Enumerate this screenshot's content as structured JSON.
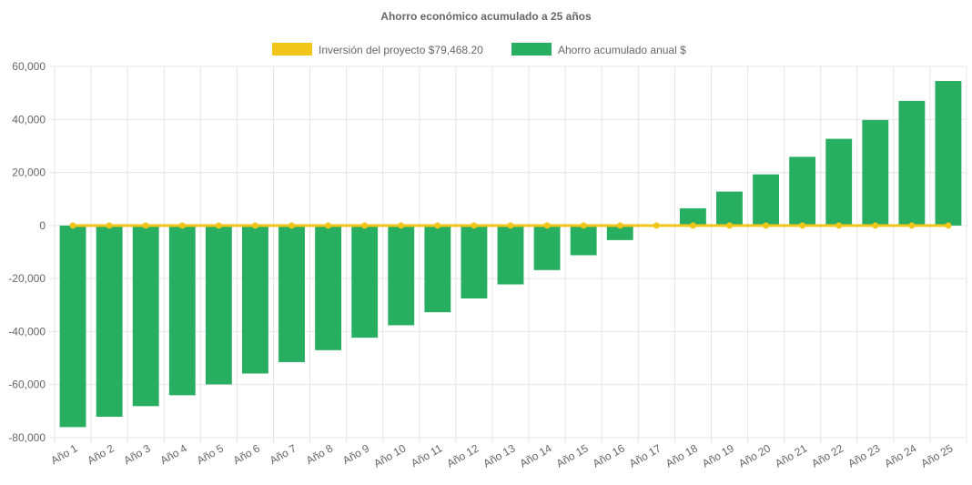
{
  "chart_data": {
    "type": "bar",
    "title": "Ahorro económico acumulado a 25 años",
    "categories": [
      "Año 1",
      "Año 2",
      "Año 3",
      "Año 4",
      "Año 5",
      "Año 6",
      "Año 7",
      "Año 8",
      "Año 9",
      "Año 10",
      "Año 11",
      "Año 12",
      "Año 13",
      "Año 14",
      "Año 15",
      "Año 16",
      "Año 17",
      "Año 18",
      "Año 19",
      "Año 20",
      "Año 21",
      "Año 22",
      "Año 23",
      "Año 24",
      "Año 25"
    ],
    "series": [
      {
        "name": "Inversión del proyecto $79,468.20",
        "kind": "line",
        "color": "#f2c51b",
        "values": [
          0,
          0,
          0,
          0,
          0,
          0,
          0,
          0,
          0,
          0,
          0,
          0,
          0,
          0,
          0,
          0,
          0,
          0,
          0,
          0,
          0,
          0,
          0,
          0,
          0
        ]
      },
      {
        "name": "Ahorro acumulado anual $",
        "kind": "bar",
        "color": "#27ae60",
        "values": [
          -76000,
          -72100,
          -68100,
          -64000,
          -59900,
          -55800,
          -51500,
          -47000,
          -42300,
          -37600,
          -32700,
          -27500,
          -22200,
          -16800,
          -11200,
          -5500,
          300,
          6500,
          12800,
          19300,
          25900,
          32700,
          39800,
          47000,
          54500
        ]
      }
    ],
    "ylim": [
      -80000,
      60000
    ],
    "yticks": [
      "60,000",
      "40,000",
      "20,000",
      "0",
      "-20,000",
      "-40,000",
      "-60,000",
      "-80,000"
    ],
    "ytick_values": [
      60000,
      40000,
      20000,
      0,
      -20000,
      -40000,
      -60000,
      -80000
    ],
    "grid": true,
    "legend_position": "top"
  }
}
